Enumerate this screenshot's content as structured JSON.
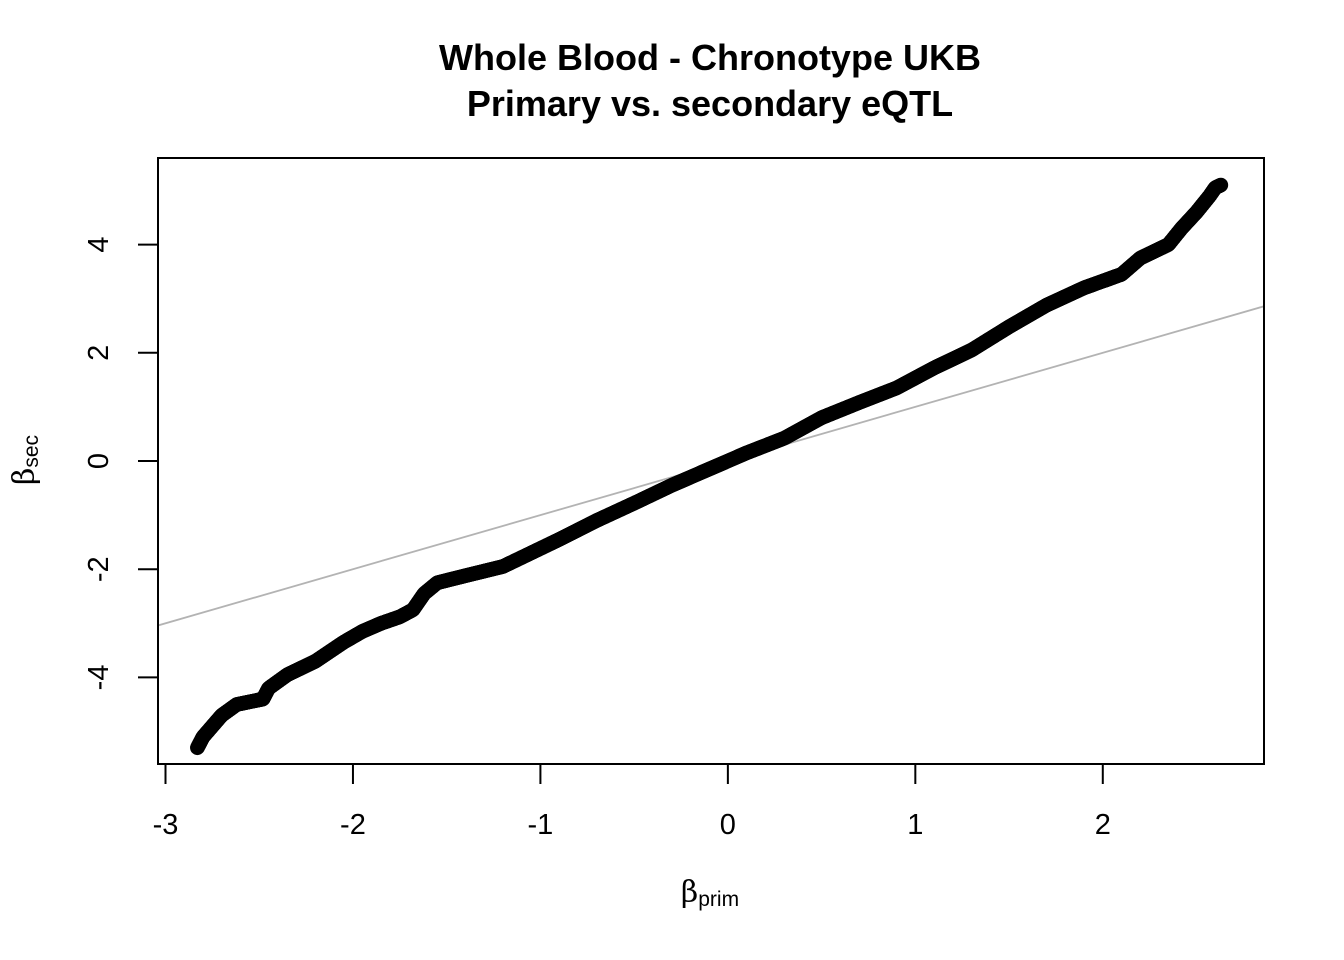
{
  "chart_data": {
    "type": "scatter",
    "title": "Whole Blood - Chronotype UKB",
    "subtitle": "Primary vs. secondary eQTL",
    "xlabel": {
      "symbol": "β",
      "subscript": "prim"
    },
    "ylabel": {
      "symbol": "β",
      "subscript": "sec"
    },
    "xlim": [
      -3.04,
      2.86
    ],
    "ylim": [
      -5.6,
      5.6
    ],
    "x_ticks": [
      -3,
      -2,
      -1,
      0,
      1,
      2
    ],
    "x_tick_labels": [
      "-3",
      "-2",
      "-1",
      "0",
      "1",
      "2"
    ],
    "y_ticks": [
      -4,
      -2,
      0,
      2,
      4
    ],
    "y_tick_labels": [
      "-4",
      "-2",
      "0",
      "2",
      "4"
    ],
    "grid": false,
    "marker": "open-circle",
    "point_color": "#000000",
    "reference_line": {
      "type": "identity",
      "slope": 1,
      "intercept": 0,
      "color": "#b3b3b3"
    },
    "curve": [
      [
        -2.83,
        -5.3
      ],
      [
        -2.8,
        -5.1
      ],
      [
        -2.75,
        -4.9
      ],
      [
        -2.7,
        -4.7
      ],
      [
        -2.62,
        -4.5
      ],
      [
        -2.55,
        -4.45
      ],
      [
        -2.48,
        -4.4
      ],
      [
        -2.45,
        -4.2
      ],
      [
        -2.35,
        -3.95
      ],
      [
        -2.2,
        -3.7
      ],
      [
        -2.05,
        -3.35
      ],
      [
        -1.95,
        -3.15
      ],
      [
        -1.85,
        -3.0
      ],
      [
        -1.75,
        -2.88
      ],
      [
        -1.68,
        -2.75
      ],
      [
        -1.62,
        -2.45
      ],
      [
        -1.55,
        -2.25
      ],
      [
        -1.4,
        -2.12
      ],
      [
        -1.2,
        -1.95
      ],
      [
        -1.05,
        -1.7
      ],
      [
        -0.9,
        -1.45
      ],
      [
        -0.7,
        -1.1
      ],
      [
        -0.5,
        -0.78
      ],
      [
        -0.3,
        -0.45
      ],
      [
        -0.1,
        -0.15
      ],
      [
        0.1,
        0.15
      ],
      [
        0.3,
        0.42
      ],
      [
        0.5,
        0.8
      ],
      [
        0.7,
        1.08
      ],
      [
        0.9,
        1.35
      ],
      [
        1.1,
        1.72
      ],
      [
        1.3,
        2.05
      ],
      [
        1.5,
        2.48
      ],
      [
        1.7,
        2.88
      ],
      [
        1.9,
        3.2
      ],
      [
        2.1,
        3.45
      ],
      [
        2.2,
        3.75
      ],
      [
        2.35,
        4.0
      ],
      [
        2.42,
        4.3
      ],
      [
        2.5,
        4.6
      ],
      [
        2.57,
        4.9
      ],
      [
        2.6,
        5.05
      ],
      [
        2.63,
        5.1
      ]
    ],
    "n_points": 1500
  }
}
